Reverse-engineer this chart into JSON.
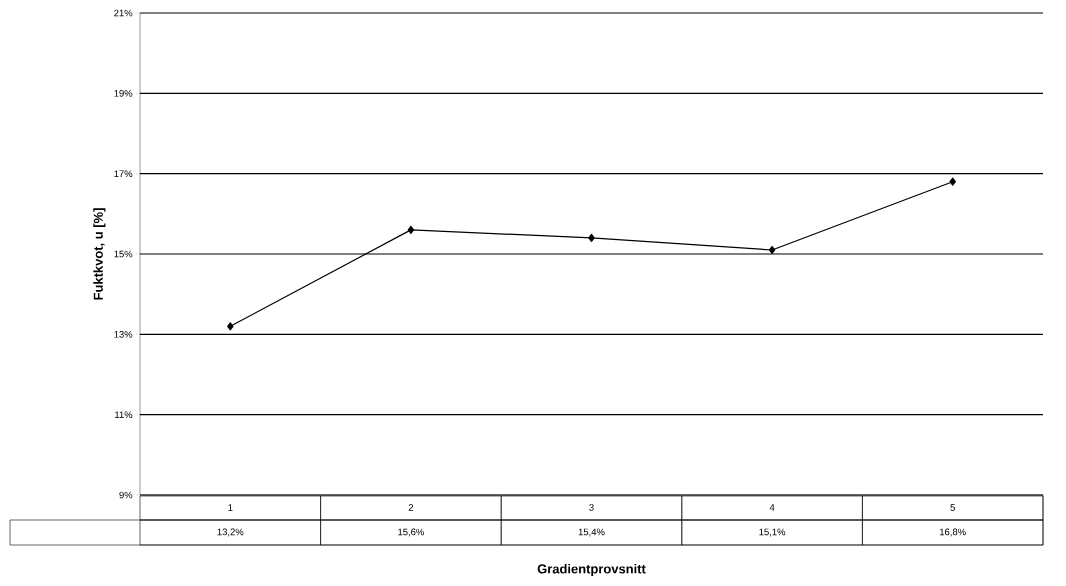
{
  "chart_data": {
    "type": "line",
    "xlabel": "Gradientprovsnitt",
    "ylabel": "Fuktkvot, u [%]",
    "categories": [
      "1",
      "2",
      "3",
      "4",
      "5"
    ],
    "series": [
      {
        "color": "#000000",
        "values": [
          13.2,
          15.6,
          15.4,
          15.1,
          16.8
        ],
        "value_labels": [
          "13,2%",
          "15,6%",
          "15,4%",
          "15,1%",
          "16,8%"
        ]
      }
    ],
    "ylim": [
      9,
      21
    ],
    "yticks": [
      {
        "value": 9,
        "label": "9%"
      },
      {
        "value": 11,
        "label": "11%"
      },
      {
        "value": 13,
        "label": "13%"
      },
      {
        "value": 15,
        "label": "15%"
      },
      {
        "value": 17,
        "label": "17%"
      },
      {
        "value": 19,
        "label": "19%"
      },
      {
        "value": 21,
        "label": "21%"
      }
    ],
    "grid": "y",
    "marker": "diamond",
    "line_style": "solid"
  }
}
